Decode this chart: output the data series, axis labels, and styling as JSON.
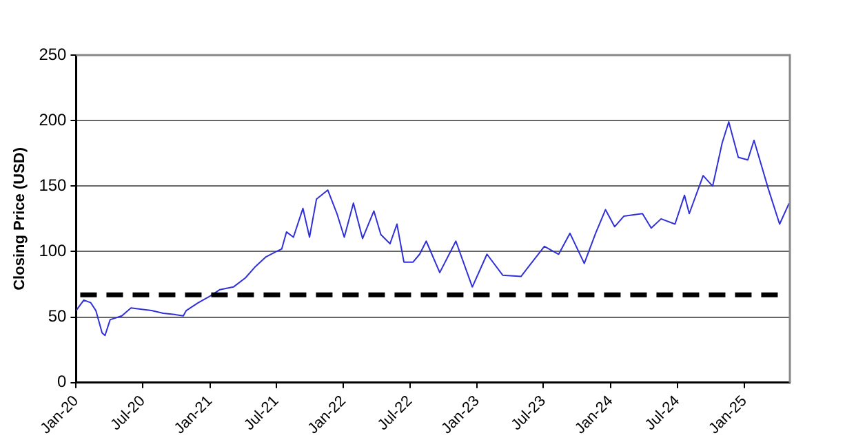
{
  "chart_data": {
    "type": "line",
    "ylabel": "Closing Price (USD)",
    "x": [
      "2020-01-01",
      "2020-01-22",
      "2020-02-10",
      "2020-02-24",
      "2020-03-12",
      "2020-03-20",
      "2020-04-03",
      "2020-05-05",
      "2020-05-30",
      "2020-06-28",
      "2020-07-25",
      "2020-08-26",
      "2020-09-26",
      "2020-10-20",
      "2020-10-28",
      "2020-11-30",
      "2021-01-01",
      "2021-01-28",
      "2021-03-06",
      "2021-04-08",
      "2021-05-03",
      "2021-06-03",
      "2021-07-01",
      "2021-07-16",
      "2021-07-29",
      "2021-08-17",
      "2021-09-12",
      "2021-09-30",
      "2021-10-19",
      "2021-11-19",
      "2021-12-14",
      "2022-01-03",
      "2022-01-28",
      "2022-02-22",
      "2022-03-25",
      "2022-04-13",
      "2022-05-08",
      "2022-05-27",
      "2022-06-15",
      "2022-07-10",
      "2022-07-28",
      "2022-08-15",
      "2022-09-21",
      "2022-11-04",
      "2022-12-19",
      "2023-01-28",
      "2023-03-12",
      "2023-05-01",
      "2023-07-04",
      "2023-08-12",
      "2023-09-12",
      "2023-10-21",
      "2023-11-21",
      "2023-12-18",
      "2024-01-12",
      "2024-02-06",
      "2024-03-28",
      "2024-04-21",
      "2024-05-18",
      "2024-06-25",
      "2024-07-21",
      "2024-08-03",
      "2024-09-10",
      "2024-10-06",
      "2024-11-01",
      "2024-11-19",
      "2024-12-15",
      "2025-01-10",
      "2025-01-27",
      "2025-03-07",
      "2025-04-07",
      "2025-05-03"
    ],
    "series": [
      {
        "color": "#3030d8",
        "values": [
          55,
          63,
          61,
          55,
          38,
          36,
          48,
          51,
          57,
          56,
          55,
          53,
          52,
          51,
          55,
          61,
          66,
          71,
          73,
          80,
          88,
          96,
          100,
          102,
          115,
          111,
          133,
          111,
          140,
          147,
          129,
          111,
          137,
          110,
          131,
          113,
          106,
          121,
          92,
          92,
          98,
          108,
          84,
          108,
          73,
          98,
          82,
          81,
          104,
          98,
          114,
          91,
          114,
          132,
          119,
          127,
          129,
          118,
          125,
          121,
          143,
          129,
          158,
          150,
          183,
          199,
          172,
          170,
          185,
          148,
          121,
          137
        ]
      }
    ],
    "xlim": [
      "2020-01-01",
      "2025-05-05"
    ],
    "xticks": [
      {
        "value": "2020-01-01",
        "label": "Jan-20"
      },
      {
        "value": "2020-07-01",
        "label": "Jul-20"
      },
      {
        "value": "2021-01-01",
        "label": "Jan-21"
      },
      {
        "value": "2021-07-01",
        "label": "Jul-21"
      },
      {
        "value": "2022-01-01",
        "label": "Jan-22"
      },
      {
        "value": "2022-07-01",
        "label": "Jul-22"
      },
      {
        "value": "2023-01-01",
        "label": "Jan-23"
      },
      {
        "value": "2023-07-01",
        "label": "Jul-23"
      },
      {
        "value": "2024-01-01",
        "label": "Jan-24"
      },
      {
        "value": "2024-07-01",
        "label": "Jul-24"
      },
      {
        "value": "2025-01-01",
        "label": "Jan-25"
      }
    ],
    "ylim": [
      0,
      250
    ],
    "yticks": [
      0,
      50,
      100,
      150,
      200,
      250
    ],
    "grid": "y",
    "legend": false,
    "marker": "none",
    "line_style": "solid",
    "ref_lines": [
      {
        "axis": "y",
        "value": 67,
        "color": "#000000",
        "line_style": "dashed"
      }
    ]
  }
}
